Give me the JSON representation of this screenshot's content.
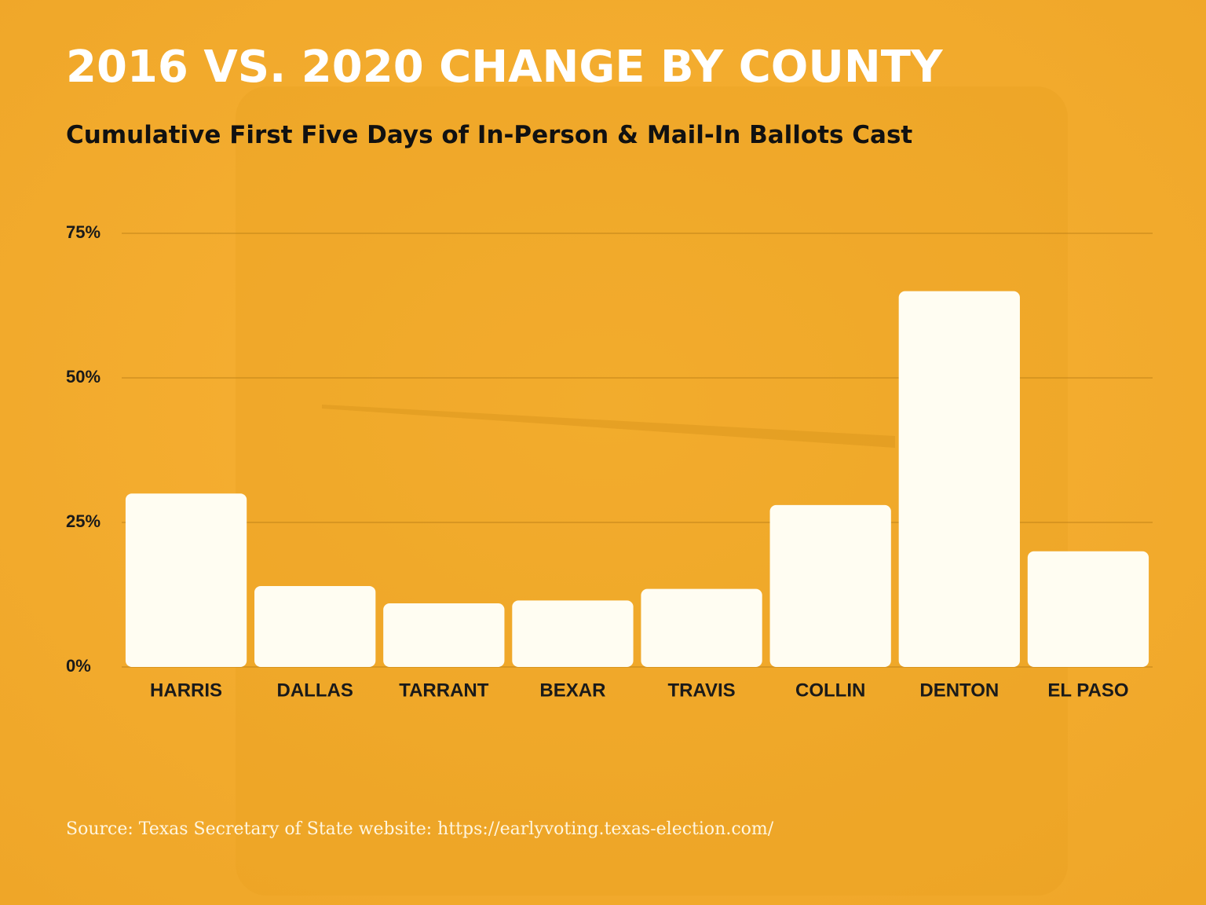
{
  "chart_data": {
    "type": "bar",
    "title": "2016 VS. 2020 CHANGE BY COUNTY",
    "subtitle": "Cumulative First Five Days of In-Person & Mail-In Ballots Cast",
    "categories": [
      "HARRIS",
      "DALLAS",
      "TARRANT",
      "BEXAR",
      "TRAVIS",
      "COLLIN",
      "DENTON",
      "EL PASO"
    ],
    "values": [
      30,
      14,
      11,
      11.5,
      13.5,
      28,
      65,
      20
    ],
    "color": "#fffdf2",
    "ylim": [
      0,
      75
    ],
    "yticks": [
      {
        "value": 0,
        "label": "0%"
      },
      {
        "value": 25,
        "label": "25%"
      },
      {
        "value": 50,
        "label": "50%"
      },
      {
        "value": 75,
        "label": "75%"
      }
    ],
    "grid": true,
    "source": "Source:  Texas Secretary of State website: https://earlyvoting.texas-election.com/"
  }
}
